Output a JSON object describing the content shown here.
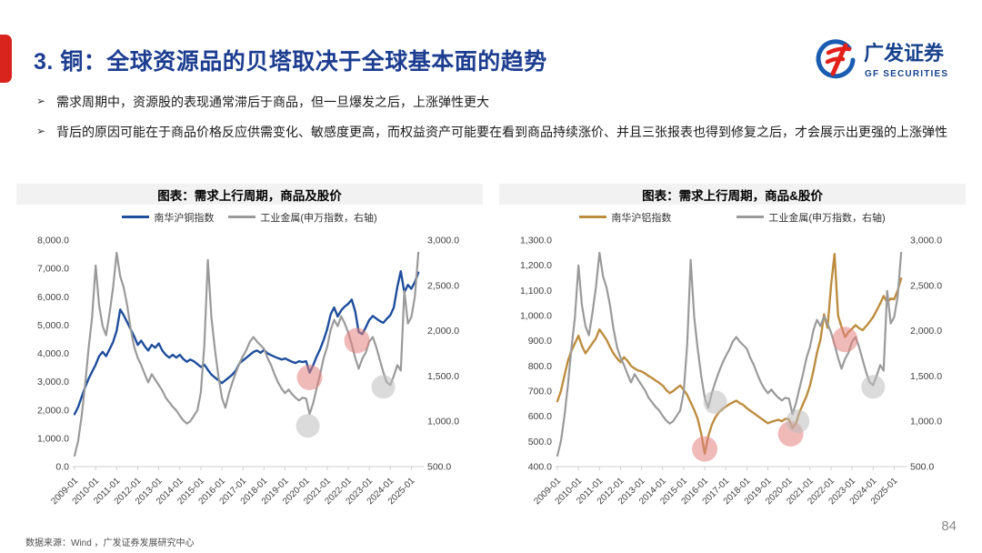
{
  "slide": {
    "title": "3. 铜：全球资源品的贝塔取决于全球基本面的趋势",
    "logo": {
      "cn": "广发证券",
      "en": "GF SECURITIES"
    },
    "bullet_mark": "➢",
    "bullets": [
      "需求周期中，资源股的表现通常滞后于商品，但一旦爆发之后，上涨弹性更大",
      "背后的原因可能在于商品价格反应供需变化、敏感度更高，而权益资产可能要在看到商品持续涨价、并且三张报表也得到修复之后，才会展示出更强的上涨弹性"
    ],
    "source": "数据来源：Wind ，广发证券发展研究中心",
    "page": "84"
  },
  "colors": {
    "accent_red": "#d8241c",
    "title_blue": "#1c3d90",
    "logo_blue": "#1a5cb0",
    "logo_red": "#e32119",
    "copper_blue": "#1f4e9c",
    "aluminum_tan": "#bd8d3f",
    "metals_gray": "#9a9a9a",
    "marker_pink": "#e4827f",
    "marker_gray": "#bdbdbd",
    "axis_text": "#404040",
    "axis_line": "#cfcfcf"
  },
  "chart_data": [
    {
      "type": "line",
      "title": "图表：需求上行周期，商品及股价",
      "legend": [
        {
          "label": "南华沪铜指数",
          "color": "#1f4e9c"
        },
        {
          "label": "工业金属(申万指数，右轴)",
          "color": "#9a9a9a"
        }
      ],
      "x_months": 198,
      "x_tick_step_months": 12,
      "x_tick_labels": [
        "2009-01",
        "2010-01",
        "2011-01",
        "2012-01",
        "2013-01",
        "2014-01",
        "2015-01",
        "2016-01",
        "2017-01",
        "2018-01",
        "2019-01",
        "2020-01",
        "2021-01",
        "2022-01",
        "2023-01",
        "2024-01",
        "2025-01"
      ],
      "left_axis": {
        "min": 0,
        "max": 8000,
        "ticks": [
          "8,000.0",
          "7,000.0",
          "6,000.0",
          "5,000.0",
          "4,000.0",
          "3,000.0",
          "2,000.0",
          "1,000.0",
          "0.0"
        ]
      },
      "right_axis": {
        "min": 500,
        "max": 3000,
        "ticks": [
          "3,000.0",
          "2,500.0",
          "2,000.0",
          "1,500.0",
          "1,000.0",
          "500.0"
        ]
      },
      "series": [
        {
          "name": "南华沪铜指数",
          "axis": "left",
          "color": "#1f4e9c",
          "width": 2.4,
          "step": 2,
          "values": [
            1850,
            2100,
            2450,
            2800,
            3100,
            3350,
            3600,
            3900,
            4050,
            3900,
            4150,
            4400,
            4800,
            5550,
            5350,
            5100,
            4850,
            4600,
            4300,
            4450,
            4250,
            4100,
            4300,
            4200,
            4350,
            4100,
            3950,
            3850,
            3950,
            3850,
            3950,
            3800,
            3700,
            3780,
            3720,
            3620,
            3520,
            3600,
            3420,
            3250,
            3150,
            3050,
            2950,
            3050,
            3150,
            3250,
            3400,
            3650,
            3750,
            3850,
            3950,
            4050,
            4100,
            4020,
            4120,
            4000,
            3940,
            3880,
            3830,
            3780,
            3820,
            3760,
            3700,
            3660,
            3720,
            3690,
            3720,
            3320,
            3580,
            3880,
            4150,
            4480,
            4850,
            5380,
            5620,
            5300,
            5520,
            5650,
            5750,
            5900,
            5480,
            4750,
            4680,
            4920,
            5180,
            5320,
            5230,
            5140,
            5080,
            5220,
            5350,
            5620,
            6350,
            6900,
            6150,
            6420,
            6280,
            6520,
            6850
          ]
        },
        {
          "name": "工业金属(申万指数，右轴)",
          "axis": "right",
          "color": "#9a9a9a",
          "width": 2.2,
          "step": 2,
          "values": [
            620,
            780,
            1050,
            1400,
            1800,
            2150,
            2720,
            2280,
            2050,
            1950,
            2200,
            2480,
            2860,
            2600,
            2480,
            2280,
            2020,
            1820,
            1700,
            1620,
            1520,
            1430,
            1520,
            1460,
            1400,
            1340,
            1260,
            1210,
            1160,
            1120,
            1060,
            1010,
            975,
            1000,
            1060,
            1120,
            1320,
            1850,
            2780,
            2150,
            1800,
            1500,
            1260,
            1150,
            1310,
            1430,
            1540,
            1640,
            1720,
            1790,
            1880,
            1930,
            1880,
            1840,
            1800,
            1700,
            1620,
            1520,
            1430,
            1360,
            1310,
            1350,
            1300,
            1260,
            1230,
            1260,
            1250,
            1080,
            1200,
            1360,
            1520,
            1700,
            1820,
            2010,
            2120,
            2050,
            2160,
            2080,
            1980,
            1850,
            1700,
            1580,
            1690,
            1760,
            1880,
            1930,
            1820,
            1680,
            1540,
            1430,
            1400,
            1500,
            1620,
            1560,
            2440,
            2080,
            2150,
            2380,
            2860
          ]
        }
      ],
      "markers": [
        {
          "month": 134,
          "value": 3150,
          "axis": "left",
          "color": "pink"
        },
        {
          "month": 161,
          "value": 4450,
          "axis": "left",
          "color": "pink"
        },
        {
          "month": 133,
          "value": 950,
          "axis": "right",
          "color": "gray"
        },
        {
          "month": 176,
          "value": 1380,
          "axis": "right",
          "color": "gray"
        }
      ]
    },
    {
      "type": "line",
      "title": "图表：需求上行周期，商品&股价",
      "legend": [
        {
          "label": "南华沪铝指数",
          "color": "#bd8d3f"
        },
        {
          "label": "工业金属(申万指数，右轴)",
          "color": "#9a9a9a"
        }
      ],
      "x_months": 198,
      "x_tick_step_months": 12,
      "x_tick_labels": [
        "2009-01",
        "2010-01",
        "2011-01",
        "2012-01",
        "2013-01",
        "2014-01",
        "2015-01",
        "2016-01",
        "2017-01",
        "2018-01",
        "2019-01",
        "2020-01",
        "2021-01",
        "2022-01",
        "2023-01",
        "2024-01",
        "2025-01"
      ],
      "left_axis": {
        "min": 400,
        "max": 1300,
        "ticks": [
          "1,300.0",
          "1,200.0",
          "1,100.0",
          "1,000.0",
          "900.0",
          "800.0",
          "700.0",
          "600.0",
          "500.0",
          "400.0"
        ]
      },
      "right_axis": {
        "min": 500,
        "max": 3000,
        "ticks": [
          "3,000.0",
          "2,500.0",
          "2,000.0",
          "1,500.0",
          "1,000.0",
          "500.0"
        ]
      },
      "series": [
        {
          "name": "南华沪铝指数",
          "axis": "left",
          "color": "#bd8d3f",
          "width": 2.4,
          "step": 2,
          "values": [
            660,
            700,
            760,
            820,
            860,
            890,
            920,
            880,
            850,
            870,
            890,
            910,
            945,
            925,
            905,
            875,
            850,
            830,
            815,
            835,
            820,
            800,
            790,
            782,
            778,
            770,
            760,
            752,
            742,
            733,
            722,
            705,
            692,
            700,
            712,
            722,
            705,
            685,
            655,
            625,
            590,
            530,
            452,
            520,
            565,
            595,
            615,
            628,
            638,
            648,
            655,
            662,
            652,
            645,
            632,
            622,
            612,
            602,
            592,
            582,
            572,
            578,
            582,
            586,
            580,
            590,
            588,
            552,
            572,
            615,
            648,
            680,
            722,
            782,
            852,
            905,
            1005,
            952,
            1120,
            1245,
            1000,
            955,
            915,
            935,
            948,
            962,
            950,
            942,
            958,
            975,
            995,
            1020,
            1048,
            1078,
            1052,
            1068,
            1065,
            1100,
            1148
          ]
        },
        {
          "name": "工业金属(申万指数，右轴)",
          "axis": "right",
          "color": "#9a9a9a",
          "width": 2.2,
          "step": 2,
          "values": [
            620,
            780,
            1050,
            1400,
            1800,
            2150,
            2720,
            2280,
            2050,
            1950,
            2200,
            2480,
            2860,
            2600,
            2480,
            2280,
            2020,
            1820,
            1700,
            1620,
            1520,
            1430,
            1520,
            1460,
            1400,
            1340,
            1260,
            1210,
            1160,
            1120,
            1060,
            1010,
            975,
            1000,
            1060,
            1120,
            1320,
            1850,
            2780,
            2150,
            1800,
            1500,
            1260,
            1150,
            1310,
            1430,
            1540,
            1640,
            1720,
            1790,
            1880,
            1930,
            1880,
            1840,
            1800,
            1700,
            1620,
            1520,
            1430,
            1360,
            1310,
            1350,
            1300,
            1260,
            1230,
            1260,
            1250,
            1080,
            1200,
            1360,
            1520,
            1700,
            1820,
            2010,
            2120,
            2050,
            2160,
            2080,
            1980,
            1850,
            1700,
            1580,
            1690,
            1760,
            1880,
            1930,
            1820,
            1680,
            1540,
            1430,
            1400,
            1500,
            1620,
            1560,
            2440,
            2080,
            2150,
            2380,
            2860
          ]
        }
      ],
      "markers": [
        {
          "month": 84,
          "value": 470,
          "axis": "left",
          "color": "pink"
        },
        {
          "month": 133,
          "value": 530,
          "axis": "left",
          "color": "pink"
        },
        {
          "month": 164,
          "value": 905,
          "axis": "left",
          "color": "pink"
        },
        {
          "month": 90,
          "value": 1210,
          "axis": "right",
          "color": "gray"
        },
        {
          "month": 137,
          "value": 1000,
          "axis": "right",
          "color": "gray"
        },
        {
          "month": 180,
          "value": 1380,
          "axis": "right",
          "color": "gray"
        }
      ]
    }
  ]
}
